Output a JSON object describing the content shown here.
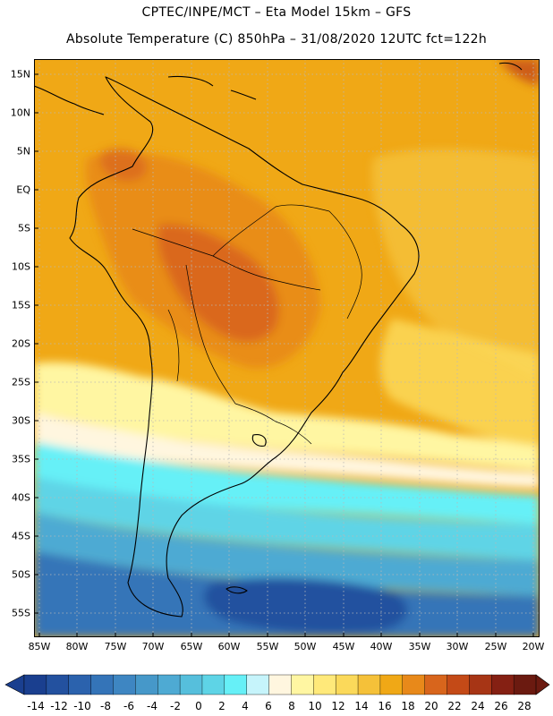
{
  "title": {
    "line1": "CPTEC/INPE/MCT –  Eta Model 15km – GFS",
    "line2": "Absolute Temperature (C) 850hPa – 31/08/2020 12UTC fct=122h"
  },
  "map": {
    "lat_labels": [
      "15N",
      "10N",
      "5N",
      "EQ",
      "5S",
      "10S",
      "15S",
      "20S",
      "25S",
      "30S",
      "35S",
      "40S",
      "45S",
      "50S",
      "55S"
    ],
    "lon_labels": [
      "85W",
      "80W",
      "75W",
      "70W",
      "65W",
      "60W",
      "55W",
      "50W",
      "45W",
      "40W",
      "35W",
      "30W",
      "25W",
      "20W"
    ]
  },
  "colorbar": {
    "labels": [
      "-14",
      "-12",
      "-10",
      "-8",
      "-6",
      "-4",
      "-2",
      "0",
      "2",
      "4",
      "6",
      "8",
      "10",
      "12",
      "14",
      "16",
      "18",
      "20",
      "22",
      "24",
      "26",
      "28"
    ],
    "colors": [
      "#1a3f8f",
      "#23519f",
      "#2b62ad",
      "#3474b8",
      "#3e86c2",
      "#4698c9",
      "#4eaad3",
      "#56bfdc",
      "#5ed4e6",
      "#66f0f7",
      "#c6f4fb",
      "#fff6df",
      "#fff6a2",
      "#ffe97a",
      "#fbd95a",
      "#f5c139",
      "#f0a816",
      "#e8891a",
      "#d8651c",
      "#c44a17",
      "#a73515",
      "#852013",
      "#6b1a10"
    ]
  }
}
